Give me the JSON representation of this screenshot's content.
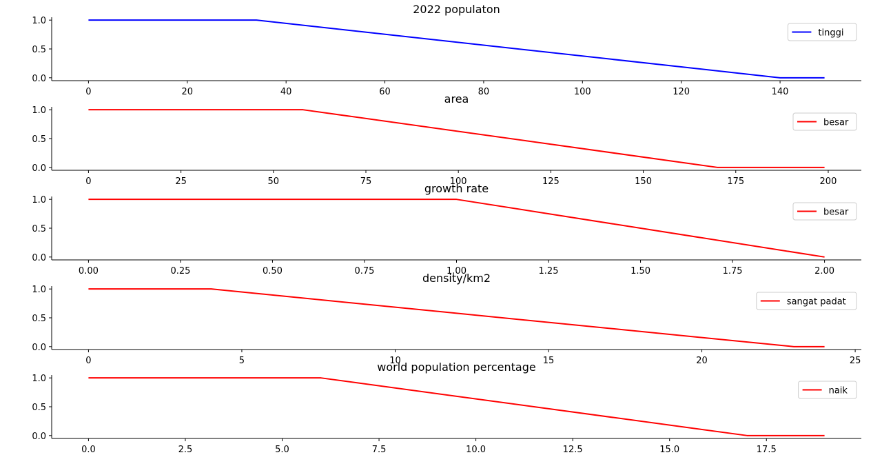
{
  "chart_data": [
    {
      "type": "line",
      "title": "2022 populaton",
      "xlabel": "",
      "ylabel": "",
      "xlim": [
        -7.45,
        156.45
      ],
      "ylim": [
        -0.05,
        1.05
      ],
      "xticks": [
        0,
        20,
        40,
        60,
        80,
        100,
        120,
        140
      ],
      "xtick_labels": [
        "0",
        "20",
        "40",
        "60",
        "80",
        "100",
        "120",
        "140"
      ],
      "yticks": [
        0.0,
        0.5,
        1.0
      ],
      "ytick_labels": [
        "0.0",
        "0.5",
        "1.0"
      ],
      "grid": false,
      "legend_position": "upper right",
      "series": [
        {
          "name": "tinggi",
          "color": "#0000ff",
          "x": [
            0,
            34,
            140,
            149
          ],
          "y": [
            1.0,
            1.0,
            0.0,
            0.0
          ]
        }
      ]
    },
    {
      "type": "line",
      "title": "area",
      "xlabel": "",
      "ylabel": "",
      "xlim": [
        -9.95,
        208.95
      ],
      "ylim": [
        -0.05,
        1.05
      ],
      "xticks": [
        0,
        25,
        50,
        75,
        100,
        125,
        150,
        175,
        200
      ],
      "xtick_labels": [
        "0",
        "25",
        "50",
        "75",
        "100",
        "125",
        "150",
        "175",
        "200"
      ],
      "yticks": [
        0.0,
        0.5,
        1.0
      ],
      "ytick_labels": [
        "0.0",
        "0.5",
        "1.0"
      ],
      "grid": false,
      "legend_position": "upper right",
      "series": [
        {
          "name": "besar",
          "color": "#ff0000",
          "x": [
            0,
            58,
            170,
            199
          ],
          "y": [
            1.0,
            1.0,
            0.0,
            0.0
          ]
        }
      ]
    },
    {
      "type": "line",
      "title": "growth rate",
      "xlabel": "",
      "ylabel": "",
      "xlim": [
        -0.1,
        2.1
      ],
      "ylim": [
        -0.05,
        1.05
      ],
      "xticks": [
        0.0,
        0.25,
        0.5,
        0.75,
        1.0,
        1.25,
        1.5,
        1.75,
        2.0
      ],
      "xtick_labels": [
        "0.00",
        "0.25",
        "0.50",
        "0.75",
        "1.00",
        "1.25",
        "1.50",
        "1.75",
        "2.00"
      ],
      "yticks": [
        0.0,
        0.5,
        1.0
      ],
      "ytick_labels": [
        "0.0",
        "0.5",
        "1.0"
      ],
      "grid": false,
      "legend_position": "upper right",
      "series": [
        {
          "name": "besar",
          "color": "#ff0000",
          "x": [
            0.0,
            1.0,
            2.0
          ],
          "y": [
            1.0,
            1.0,
            0.0
          ]
        }
      ]
    },
    {
      "type": "line",
      "title": "density/km2",
      "xlabel": "",
      "ylabel": "",
      "xlim": [
        -1.2,
        25.2
      ],
      "ylim": [
        -0.05,
        1.05
      ],
      "xticks": [
        0,
        5,
        10,
        15,
        20,
        25
      ],
      "xtick_labels": [
        "0",
        "5",
        "10",
        "15",
        "20",
        "25"
      ],
      "yticks": [
        0.0,
        0.5,
        1.0
      ],
      "ytick_labels": [
        "0.0",
        "0.5",
        "1.0"
      ],
      "grid": false,
      "legend_position": "upper right",
      "series": [
        {
          "name": "sangat padat",
          "color": "#ff0000",
          "x": [
            0,
            4,
            23,
            24
          ],
          "y": [
            1.0,
            1.0,
            0.0,
            0.0
          ]
        }
      ]
    },
    {
      "type": "line",
      "title": "world population percentage",
      "xlabel": "",
      "ylabel": "",
      "xlim": [
        -0.95,
        19.95
      ],
      "ylim": [
        -0.05,
        1.05
      ],
      "xticks": [
        0.0,
        2.5,
        5.0,
        7.5,
        10.0,
        12.5,
        15.0,
        17.5
      ],
      "xtick_labels": [
        "0.0",
        "2.5",
        "5.0",
        "7.5",
        "10.0",
        "12.5",
        "15.0",
        "17.5"
      ],
      "yticks": [
        0.0,
        0.5,
        1.0
      ],
      "ytick_labels": [
        "0.0",
        "0.5",
        "1.0"
      ],
      "grid": false,
      "legend_position": "upper right",
      "series": [
        {
          "name": "naik",
          "color": "#ff0000",
          "x": [
            0,
            6,
            17,
            19
          ],
          "y": [
            1.0,
            1.0,
            0.0,
            0.0
          ]
        }
      ]
    }
  ]
}
